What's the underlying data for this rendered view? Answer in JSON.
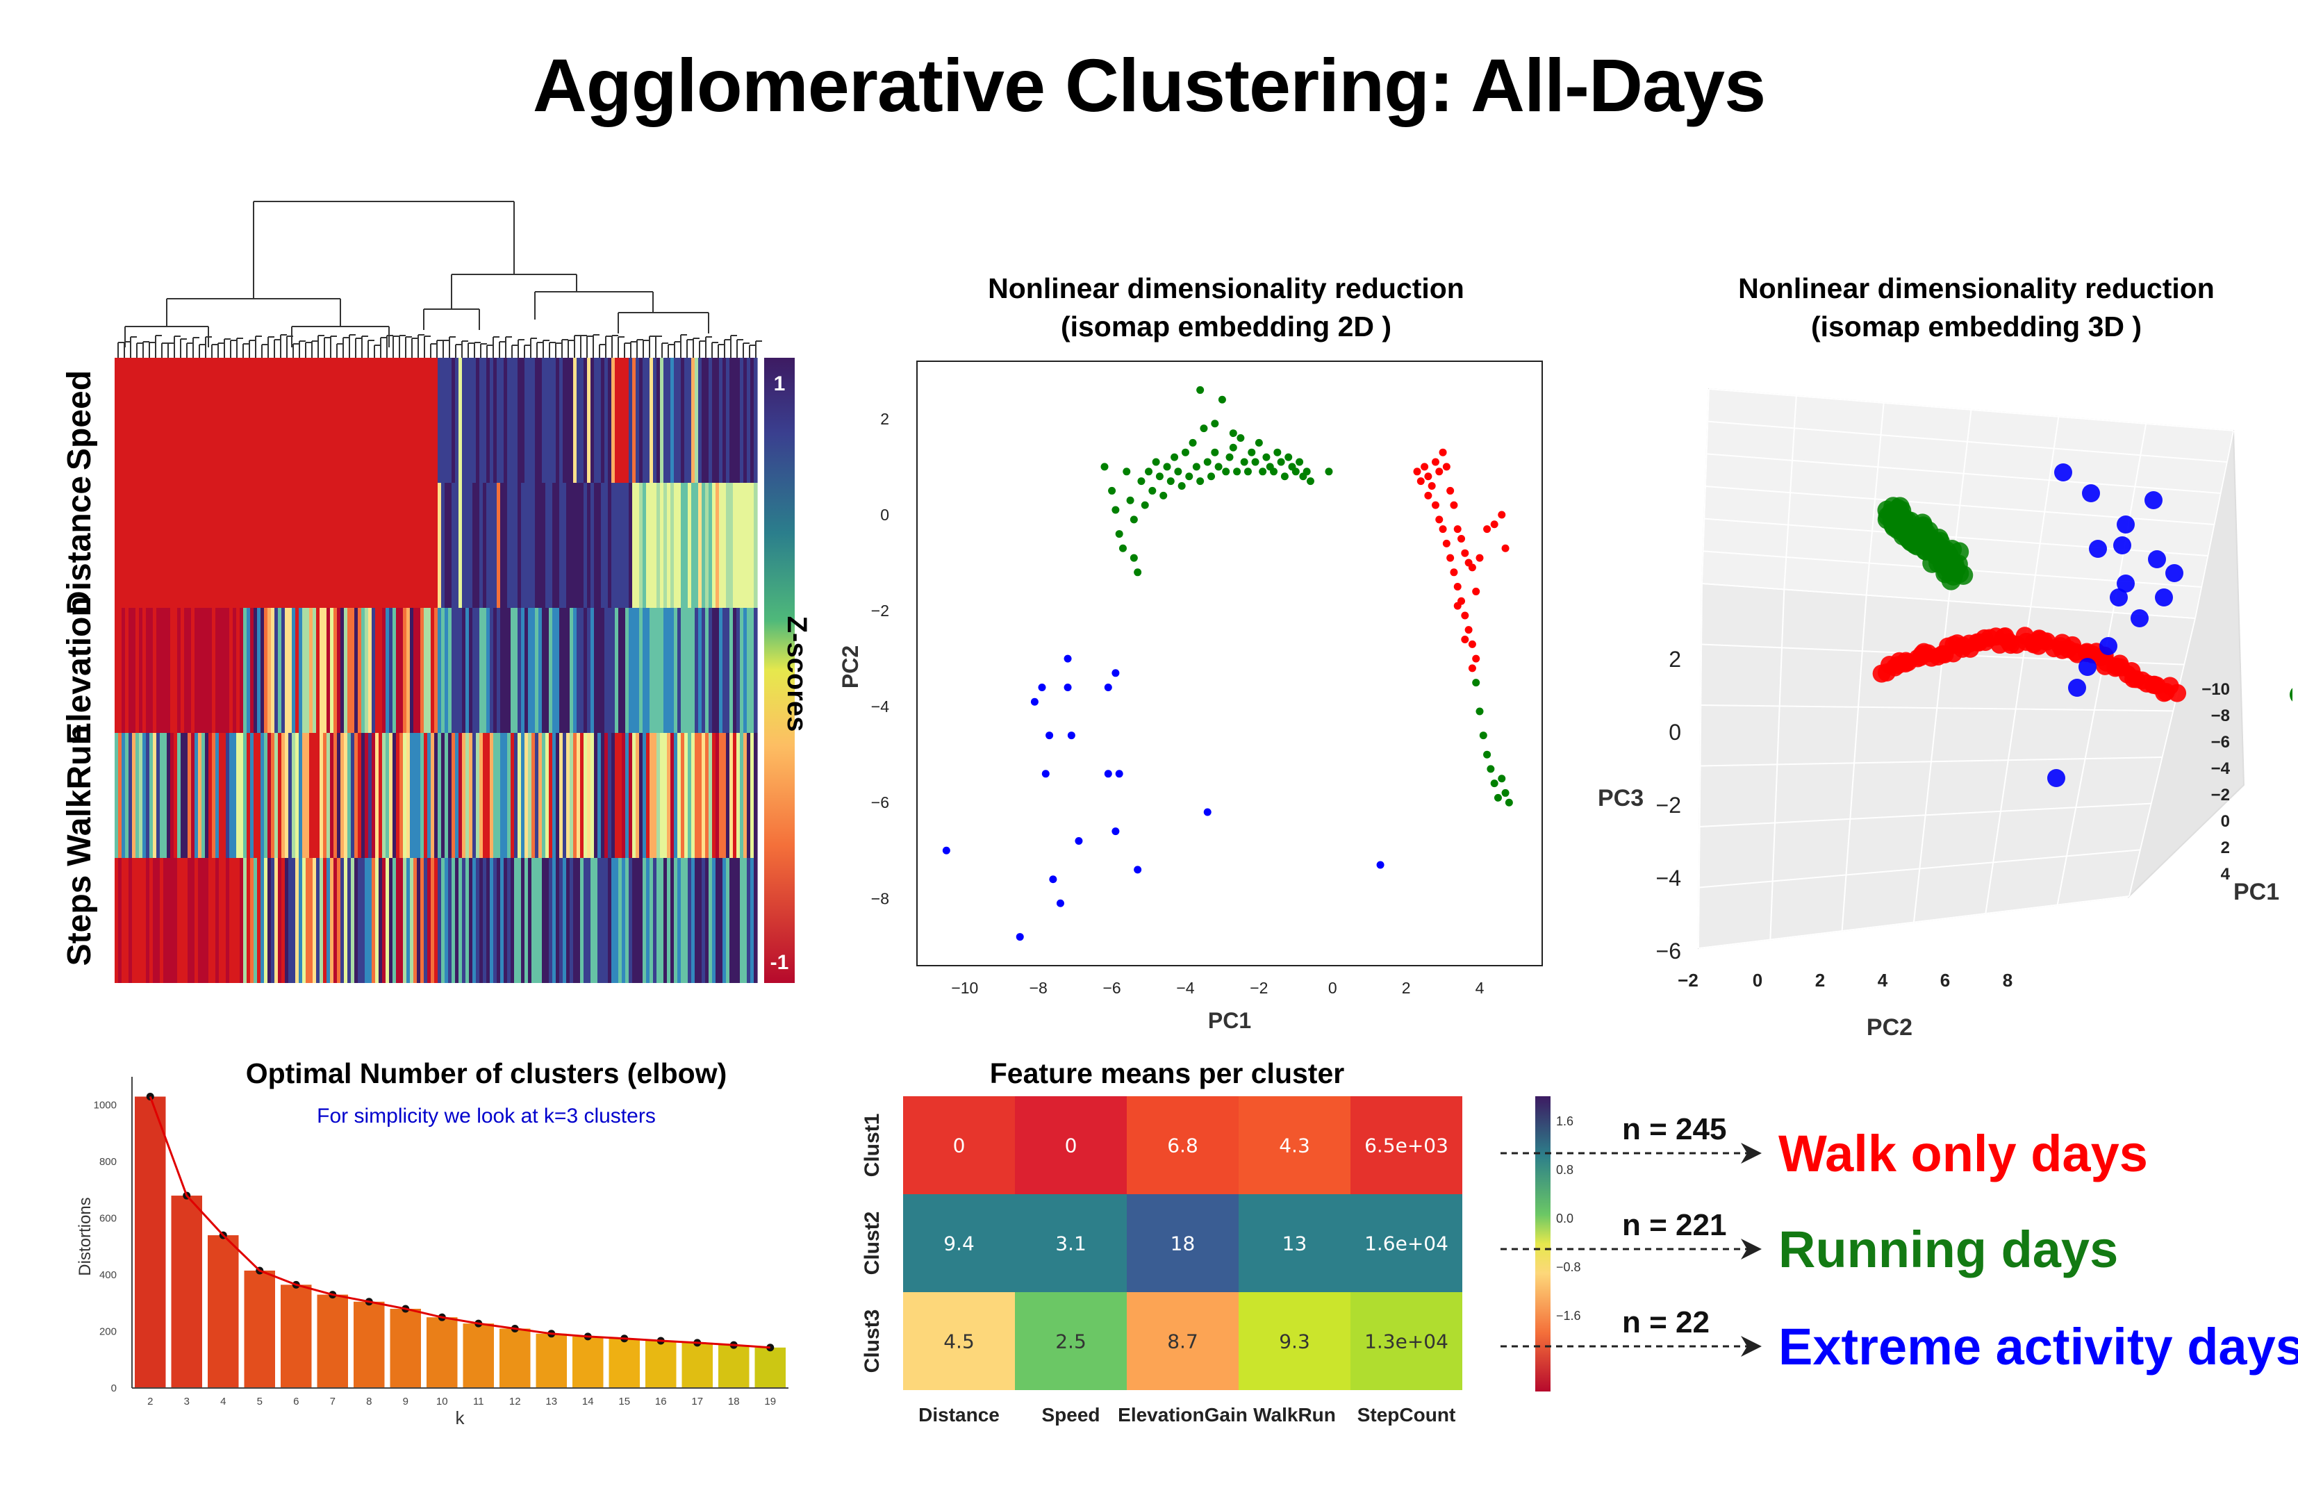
{
  "title": "Agglomerative Clustering: All-Days",
  "colors": {
    "cluster1": "#ff0000",
    "cluster2": "#008000",
    "cluster3": "#0000ff",
    "walk": "#ff0000",
    "run": "#137a13",
    "extreme": "#0000ff"
  },
  "clustermap": {
    "row_labels": [
      "Speed",
      "Distance",
      "Elevation",
      "WalkRun",
      "Steps"
    ],
    "colorbar_label": "Z-scores",
    "colorbar_ticks": [
      "1",
      "-1"
    ]
  },
  "scatter2d": {
    "title_line1": "Nonlinear dimensionality reduction",
    "title_line2": "(isomap embedding 2D )",
    "xlabel": "PC1",
    "ylabel": "PC2",
    "x_ticks": [
      "−10",
      "−8",
      "−6",
      "−4",
      "−2",
      "0",
      "2",
      "4"
    ],
    "y_ticks": [
      "2",
      "0",
      "−2",
      "−4",
      "−6",
      "−8"
    ]
  },
  "scatter3d": {
    "title_line1": "Nonlinear dimensionality reduction",
    "title_line2": "(isomap embedding 3D )",
    "xlabel": "PC2",
    "ylabel": "PC1",
    "zlabel": "PC3",
    "pc2_ticks": [
      "−2",
      "0",
      "2",
      "4",
      "6",
      "8"
    ],
    "pc1_ticks": [
      "−10",
      "−8",
      "−6",
      "−4",
      "−2",
      "0",
      "2",
      "4"
    ],
    "pc3_ticks": [
      "2",
      "0",
      "−2",
      "−4",
      "−6"
    ]
  },
  "elbow": {
    "title": "Optimal Number of clusters (elbow)",
    "subtitle": "For simplicity we look at k=3 clusters",
    "xlabel": "k",
    "ylabel": "Distortions",
    "y_ticks": [
      "0",
      "200",
      "400",
      "600",
      "800",
      "1000"
    ]
  },
  "heatmap_means": {
    "title": "Feature means per cluster",
    "rows": [
      "Clust1",
      "Clust2",
      "Clust3"
    ],
    "cols": [
      "Distance",
      "Speed",
      "ElevationGain",
      "WalkRun",
      "StepCount"
    ],
    "colorbar_ticks": [
      "1.6",
      "0.8",
      "0.0",
      "−0.8",
      "−1.6"
    ]
  },
  "annotations": [
    {
      "n": "n = 245",
      "label": "Walk only days",
      "color": "#ff0000"
    },
    {
      "n": "n = 221",
      "label": "Running days",
      "color": "#137a13"
    },
    {
      "n": "n = 22",
      "label": "Extreme activity days",
      "color": "#0000ff"
    }
  ],
  "chart_data": [
    {
      "type": "heatmap",
      "title": "Feature means per cluster",
      "rows": [
        "Clust1",
        "Clust2",
        "Clust3"
      ],
      "cols": [
        "Distance",
        "Speed",
        "ElevationGain",
        "WalkRun",
        "StepCount"
      ],
      "cell_labels": [
        [
          "0",
          "0",
          "6.8",
          "4.3",
          "6.5e+03"
        ],
        [
          "9.4",
          "3.1",
          "18",
          "13",
          "1.6e+04"
        ],
        [
          "4.5",
          "2.5",
          "8.7",
          "9.3",
          "1.3e+04"
        ]
      ],
      "cell_colors": [
        [
          "#e7352c",
          "#dc2130",
          "#f04a2a",
          "#f3572c",
          "#e5322c"
        ],
        [
          "#2d7f8a",
          "#2d7f8a",
          "#3a5d93",
          "#2d7f8a",
          "#2d7f8a"
        ],
        [
          "#fdd77a",
          "#6bc765",
          "#fca454",
          "#cbe52c",
          "#b0dd2f"
        ]
      ],
      "colorbar_range": [
        -1.6,
        1.6
      ]
    },
    {
      "type": "bar",
      "title": "Optimal Number of clusters (elbow)",
      "xlabel": "k",
      "ylabel": "Distortions",
      "categories": [
        2,
        3,
        4,
        5,
        6,
        7,
        8,
        9,
        10,
        11,
        12,
        13,
        14,
        15,
        16,
        17,
        18,
        19
      ],
      "values": [
        1030,
        680,
        540,
        415,
        365,
        330,
        305,
        280,
        250,
        228,
        210,
        192,
        182,
        175,
        167,
        160,
        152,
        143
      ],
      "line_overlay": true,
      "ylim": [
        0,
        1100
      ]
    },
    {
      "type": "scatter",
      "title": "Nonlinear dimensionality reduction (isomap embedding 2D )",
      "xlabel": "PC1",
      "ylabel": "PC2",
      "xlim": [
        -11.3,
        5.7
      ],
      "ylim": [
        -9.4,
        3.2
      ],
      "series": [
        {
          "color": "#0000ff",
          "points": [
            [
              -10.5,
              -7
            ],
            [
              -8.5,
              -8.8
            ],
            [
              -8.1,
              -3.9
            ],
            [
              -7.9,
              -3.6
            ],
            [
              -7.8,
              -5.4
            ],
            [
              -7.7,
              -4.6
            ],
            [
              -7.6,
              -7.6
            ],
            [
              -7.4,
              -8.1
            ],
            [
              -7.2,
              -3
            ],
            [
              -7.2,
              -3.6
            ],
            [
              -7.1,
              -4.6
            ],
            [
              -6.9,
              -6.8
            ],
            [
              -6.1,
              -3.6
            ],
            [
              -6.1,
              -5.4
            ],
            [
              -5.9,
              -3.3
            ],
            [
              -5.9,
              -6.6
            ],
            [
              -5.8,
              -5.4
            ],
            [
              -5.3,
              -7.4
            ],
            [
              -3.4,
              -6.2
            ],
            [
              1.3,
              -7.3
            ]
          ]
        },
        {
          "color": "#008000",
          "points": [
            [
              -6.2,
              1
            ],
            [
              -6,
              0.5
            ],
            [
              -5.9,
              0.1
            ],
            [
              -5.8,
              -0.4
            ],
            [
              -5.7,
              -0.7
            ],
            [
              -5.6,
              0.9
            ],
            [
              -5.5,
              0.3
            ],
            [
              -5.4,
              -0.1
            ],
            [
              -5.4,
              -0.9
            ],
            [
              -5.3,
              -1.2
            ],
            [
              -5.2,
              0.7
            ],
            [
              -5.1,
              0.2
            ],
            [
              -5,
              0.9
            ],
            [
              -4.9,
              0.5
            ],
            [
              -4.8,
              1.1
            ],
            [
              -4.7,
              0.8
            ],
            [
              -4.6,
              0.4
            ],
            [
              -4.5,
              1
            ],
            [
              -4.4,
              0.7
            ],
            [
              -4.3,
              1.2
            ],
            [
              -4.2,
              0.9
            ],
            [
              -4.1,
              0.6
            ],
            [
              -4,
              1.3
            ],
            [
              -3.9,
              0.8
            ],
            [
              -3.8,
              1.5
            ],
            [
              -3.7,
              1
            ],
            [
              -3.6,
              0.7
            ],
            [
              -3.5,
              1.8
            ],
            [
              -3.4,
              1.1
            ],
            [
              -3.3,
              0.8
            ],
            [
              -3.2,
              1.3
            ],
            [
              -3.1,
              1
            ],
            [
              -3,
              2.4
            ],
            [
              -2.9,
              0.9
            ],
            [
              -2.8,
              1.2
            ],
            [
              -2.7,
              1.4
            ],
            [
              -2.6,
              0.9
            ],
            [
              -2.5,
              1.6
            ],
            [
              -2.4,
              1.1
            ],
            [
              -2.3,
              0.9
            ],
            [
              -2.2,
              1.3
            ],
            [
              -2.1,
              1.1
            ],
            [
              -2,
              1.5
            ],
            [
              -1.9,
              0.9
            ],
            [
              -1.8,
              1.2
            ],
            [
              -1.7,
              1
            ],
            [
              -1.6,
              0.9
            ],
            [
              -1.5,
              1.3
            ],
            [
              -1.4,
              1.1
            ],
            [
              -1.3,
              0.8
            ],
            [
              -1.2,
              1.2
            ],
            [
              -1.1,
              1
            ],
            [
              -1,
              0.9
            ],
            [
              -0.9,
              1.1
            ],
            [
              -0.8,
              0.8
            ],
            [
              -0.7,
              0.9
            ],
            [
              -0.6,
              0.7
            ],
            [
              -3.6,
              2.6
            ],
            [
              -3.2,
              1.9
            ],
            [
              -2.7,
              1.7
            ],
            [
              -0.1,
              0.9
            ],
            [
              3.9,
              -3.5
            ],
            [
              4,
              -4.1
            ],
            [
              4.1,
              -4.6
            ],
            [
              4.2,
              -5
            ],
            [
              4.3,
              -5.3
            ],
            [
              4.4,
              -5.6
            ],
            [
              4.5,
              -5.9
            ],
            [
              4.6,
              -5.5
            ],
            [
              4.8,
              -6
            ],
            [
              4.7,
              -5.8
            ]
          ]
        },
        {
          "color": "#ff0000",
          "points": [
            [
              2.3,
              0.9
            ],
            [
              2.4,
              0.7
            ],
            [
              2.5,
              1
            ],
            [
              2.6,
              0.8
            ],
            [
              2.7,
              0.6
            ],
            [
              2.8,
              1.1
            ],
            [
              2.9,
              0.9
            ],
            [
              3,
              1.3
            ],
            [
              3.1,
              1
            ],
            [
              2.6,
              0.4
            ],
            [
              2.8,
              0.2
            ],
            [
              2.9,
              -0.1
            ],
            [
              3,
              -0.3
            ],
            [
              3.1,
              -0.6
            ],
            [
              3.2,
              -0.9
            ],
            [
              3.3,
              -1.2
            ],
            [
              3.4,
              -1.5
            ],
            [
              3.5,
              -1.8
            ],
            [
              3.6,
              -2.1
            ],
            [
              3.7,
              -2.4
            ],
            [
              3.8,
              -2.7
            ],
            [
              3.9,
              -3
            ],
            [
              3.4,
              -0.3
            ],
            [
              3.5,
              -0.5
            ],
            [
              3.6,
              -0.8
            ],
            [
              3.7,
              -1
            ],
            [
              3.8,
              -1.1
            ],
            [
              4,
              -0.9
            ],
            [
              4.2,
              -0.3
            ],
            [
              4.4,
              -0.2
            ],
            [
              4.6,
              0
            ],
            [
              3.3,
              0.2
            ],
            [
              3.2,
              0.5
            ],
            [
              3.4,
              -1.9
            ],
            [
              3.6,
              -2.6
            ],
            [
              3.8,
              -3.2
            ],
            [
              3.9,
              -1.6
            ],
            [
              4.7,
              -0.7
            ]
          ]
        }
      ]
    },
    {
      "type": "scatter",
      "title": "Nonlinear dimensionality reduction (isomap embedding 3D )",
      "xlabel": "PC2",
      "ylabel": "PC1",
      "zlabel": "PC3",
      "series": [
        {
          "color": "#0000ff",
          "note": "extreme days cluster (~22 points)"
        },
        {
          "color": "#008000",
          "note": "running days cluster"
        },
        {
          "color": "#ff0000",
          "note": "walk only days cluster"
        }
      ]
    }
  ]
}
